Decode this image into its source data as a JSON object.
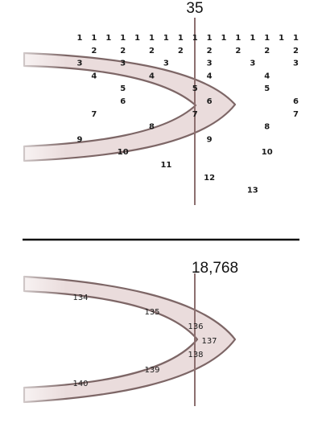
{
  "top_panel": {
    "title": "35",
    "grid_numbers": [
      {
        "t": "1",
        "c": 0,
        "r": 0
      },
      {
        "t": "1",
        "c": 1,
        "r": 0
      },
      {
        "t": "1",
        "c": 2,
        "r": 0
      },
      {
        "t": "1",
        "c": 3,
        "r": 0
      },
      {
        "t": "1",
        "c": 4,
        "r": 0
      },
      {
        "t": "1",
        "c": 5,
        "r": 0
      },
      {
        "t": "1",
        "c": 6,
        "r": 0
      },
      {
        "t": "1",
        "c": 7,
        "r": 0
      },
      {
        "t": "1",
        "c": 8,
        "r": 0
      },
      {
        "t": "1",
        "c": 9,
        "r": 0
      },
      {
        "t": "1",
        "c": 10,
        "r": 0
      },
      {
        "t": "1",
        "c": 11,
        "r": 0
      },
      {
        "t": "1",
        "c": 12,
        "r": 0
      },
      {
        "t": "1",
        "c": 13,
        "r": 0
      },
      {
        "t": "1",
        "c": 14,
        "r": 0
      },
      {
        "t": "1",
        "c": 15,
        "r": 0
      },
      {
        "t": "2",
        "c": 1,
        "r": 1
      },
      {
        "t": "2",
        "c": 3,
        "r": 1
      },
      {
        "t": "2",
        "c": 5,
        "r": 1
      },
      {
        "t": "2",
        "c": 7,
        "r": 1
      },
      {
        "t": "2",
        "c": 9,
        "r": 1
      },
      {
        "t": "2",
        "c": 11,
        "r": 1
      },
      {
        "t": "2",
        "c": 13,
        "r": 1
      },
      {
        "t": "2",
        "c": 15,
        "r": 1
      },
      {
        "t": "3",
        "c": 0,
        "r": 2
      },
      {
        "t": "3",
        "c": 3,
        "r": 2
      },
      {
        "t": "3",
        "c": 6,
        "r": 2
      },
      {
        "t": "3",
        "c": 9,
        "r": 2
      },
      {
        "t": "3",
        "c": 12,
        "r": 2
      },
      {
        "t": "3",
        "c": 15,
        "r": 2
      },
      {
        "t": "4",
        "c": 1,
        "r": 3
      },
      {
        "t": "4",
        "c": 5,
        "r": 3
      },
      {
        "t": "4",
        "c": 9,
        "r": 3
      },
      {
        "t": "4",
        "c": 13,
        "r": 3
      },
      {
        "t": "5",
        "c": 3,
        "r": 4
      },
      {
        "t": "5",
        "c": 8,
        "r": 4
      },
      {
        "t": "5",
        "c": 13,
        "r": 4
      },
      {
        "t": "6",
        "c": 3,
        "r": 5
      },
      {
        "t": "6",
        "c": 9,
        "r": 5
      },
      {
        "t": "6",
        "c": 15,
        "r": 5
      },
      {
        "t": "7",
        "c": 1,
        "r": 6
      },
      {
        "t": "7",
        "c": 8,
        "r": 6
      },
      {
        "t": "7",
        "c": 15,
        "r": 6
      },
      {
        "t": "8",
        "c": 5,
        "r": 7
      },
      {
        "t": "8",
        "c": 13,
        "r": 7
      },
      {
        "t": "9",
        "c": 0,
        "r": 8
      },
      {
        "t": "9",
        "c": 9,
        "r": 8
      },
      {
        "t": "10",
        "c": 3,
        "r": 9
      },
      {
        "t": "10",
        "c": 13,
        "r": 9
      },
      {
        "t": "11",
        "c": 6,
        "r": 10
      },
      {
        "t": "12",
        "c": 9,
        "r": 11
      },
      {
        "t": "13",
        "c": 12,
        "r": 12
      }
    ]
  },
  "bottom_panel": {
    "title": "18,768",
    "band_labels": [
      "134",
      "135",
      "136",
      "137",
      "138",
      "139",
      "140"
    ]
  },
  "colors": {
    "band_fill": "#eadcdc",
    "band_edge": "#7d6666",
    "vertical_line": "#8c6f6f",
    "divider": "#111111"
  }
}
